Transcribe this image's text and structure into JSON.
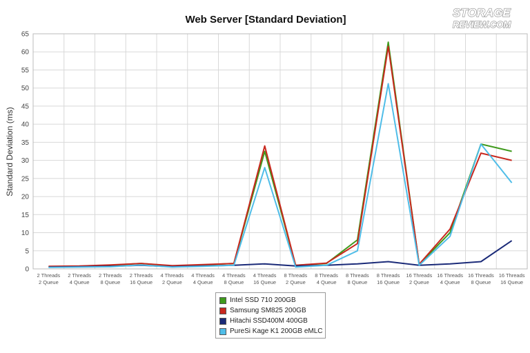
{
  "logo": {
    "line1": "STORAGE",
    "line2": "REVIEW.COM"
  },
  "chart_data": {
    "type": "line",
    "title": "Web Server [Standard Deviation]",
    "xlabel": "",
    "ylabel": "Standard Deviation (ms)",
    "ylim": [
      0,
      65
    ],
    "yticks": [
      0,
      5,
      10,
      15,
      20,
      25,
      30,
      35,
      40,
      45,
      50,
      55,
      60,
      65
    ],
    "grid": true,
    "legend_position": "bottom",
    "categories": [
      [
        "2 Threads",
        "2 Queue"
      ],
      [
        "2 Threads",
        "4 Queue"
      ],
      [
        "2 Threads",
        "8 Queue"
      ],
      [
        "2 Threads",
        "16 Queue"
      ],
      [
        "4 Threads",
        "2 Queue"
      ],
      [
        "4 Threads",
        "4 Queue"
      ],
      [
        "4 Threads",
        "8 Queue"
      ],
      [
        "4 Threads",
        "16 Queue"
      ],
      [
        "8 Threads",
        "2 Queue"
      ],
      [
        "8 Threads",
        "4 Queue"
      ],
      [
        "8 Threads",
        "8 Queue"
      ],
      [
        "8 Threads",
        "16 Queue"
      ],
      [
        "16 Threads",
        "2 Queue"
      ],
      [
        "16 Threads",
        "4 Queue"
      ],
      [
        "16 Threads",
        "8 Queue"
      ],
      [
        "16 Threads",
        "16 Queue"
      ]
    ],
    "series": [
      {
        "name": "Intel SSD 710 200GB",
        "color": "#3f9a1c",
        "values": [
          0.6,
          0.7,
          1.0,
          1.5,
          0.8,
          1.1,
          1.5,
          32.5,
          1.0,
          1.5,
          8.0,
          62.7,
          1.2,
          10.0,
          34.5,
          32.5
        ]
      },
      {
        "name": "Samsung SM825 200GB",
        "color": "#c8281e",
        "values": [
          0.7,
          0.8,
          1.1,
          1.5,
          0.9,
          1.2,
          1.5,
          34.0,
          1.0,
          1.6,
          7.0,
          61.5,
          1.3,
          11.0,
          32.0,
          30.0
        ]
      },
      {
        "name": "Hitachi SSD400M 400GB",
        "color": "#1a2a78",
        "values": [
          0.5,
          0.6,
          0.7,
          1.0,
          0.6,
          0.8,
          1.0,
          1.4,
          0.8,
          1.0,
          1.4,
          2.0,
          1.0,
          1.4,
          2.0,
          7.8
        ]
      },
      {
        "name": "PureSi Kage K1 200GB eMLC",
        "color": "#4fbde8",
        "values": [
          0.4,
          0.5,
          0.6,
          1.1,
          0.5,
          0.7,
          1.0,
          28.0,
          0.5,
          1.0,
          5.0,
          51.2,
          1.0,
          9.0,
          34.5,
          23.8
        ]
      }
    ]
  }
}
